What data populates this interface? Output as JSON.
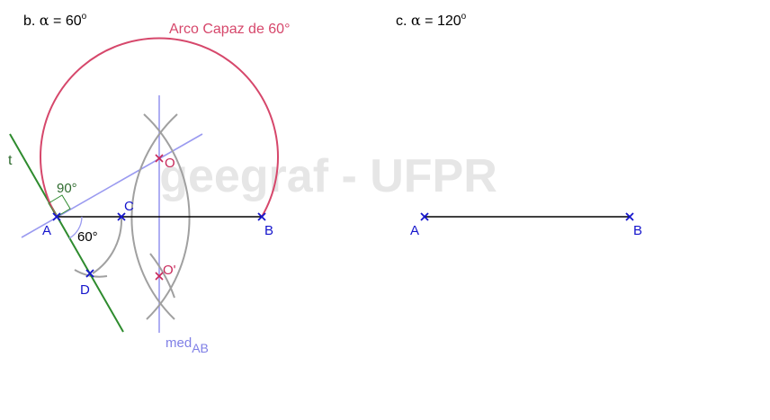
{
  "panel_b": {
    "heading_prefix": "b.",
    "heading_alpha": "α",
    "heading_eq": " = 60",
    "heading_deg": "o",
    "arc_label": "Arco Capaz de 60°",
    "watermark": "geegraf - UFPR",
    "points": {
      "A": "A",
      "B": "B",
      "C": "C",
      "D": "D",
      "O": "O",
      "O_prime": "O'"
    },
    "tangent_label": "t",
    "angle_90": "90°",
    "angle_60": "60°",
    "mediatrix_label": "med",
    "mediatrix_sub": "AB"
  },
  "panel_c": {
    "heading_prefix": "c.",
    "heading_alpha": "α",
    "heading_eq": " = 120",
    "heading_deg": "o",
    "points": {
      "A": "A",
      "B": "B"
    }
  },
  "colors": {
    "arc": "#d6476b",
    "point": "#1515cc",
    "center": "#c8285a",
    "tangent": "#2e8b2e",
    "perp": "#9a9af0",
    "construction": "#a0a0a0",
    "segment": "#000000",
    "watermark": "#e6e6e6"
  }
}
